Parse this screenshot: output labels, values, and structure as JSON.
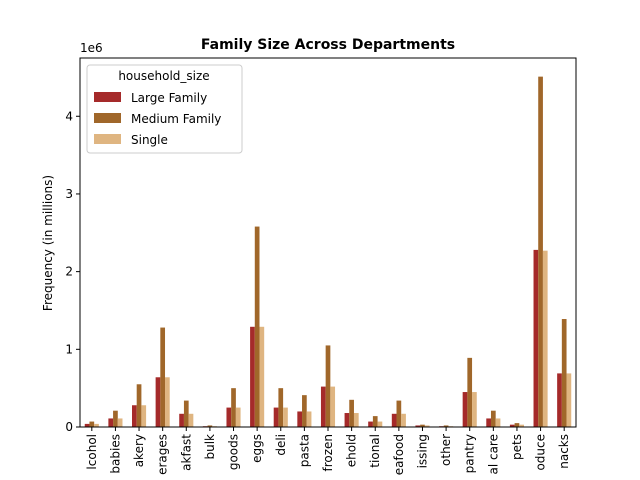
{
  "chart_data": {
    "type": "bar",
    "title": "Family Size Across Departments",
    "xlabel": "",
    "ylabel": "Frequency (in millions)",
    "y_scale_label": "1e6",
    "ylim": [
      0,
      4.75
    ],
    "yticks": [
      0,
      1,
      2,
      3,
      4
    ],
    "legend": {
      "title": "household_size",
      "placement": "top-left"
    },
    "categories": [
      "alcohol",
      "babies",
      "bakery",
      "beverages",
      "breakfast",
      "bulk",
      "canned goods",
      "dairy eggs",
      "deli",
      "dry goods pasta",
      "frozen",
      "household",
      "international",
      "meat seafood",
      "missing",
      "other",
      "pantry",
      "personal care",
      "pets",
      "produce",
      "snacks"
    ],
    "tick_labels": [
      "lcohol",
      "babies",
      "akery",
      "erages",
      "akfast",
      "bulk",
      "goods",
      "eggs",
      "deli",
      "pasta",
      "frozen",
      "ehold",
      "tional",
      "eafood",
      "issing",
      "other",
      "pantry",
      "al care",
      "pets",
      "oduce",
      "nacks"
    ],
    "series": [
      {
        "name": "Large Family",
        "color": "#a52a2a",
        "values": [
          0.04,
          0.11,
          0.28,
          0.64,
          0.17,
          0.01,
          0.25,
          1.29,
          0.25,
          0.2,
          0.52,
          0.18,
          0.07,
          0.17,
          0.02,
          0.01,
          0.45,
          0.11,
          0.03,
          2.28,
          0.69
        ]
      },
      {
        "name": "Medium Family",
        "color": "#a0672a",
        "values": [
          0.07,
          0.21,
          0.55,
          1.28,
          0.34,
          0.02,
          0.5,
          2.58,
          0.5,
          0.41,
          1.05,
          0.35,
          0.14,
          0.34,
          0.03,
          0.02,
          0.89,
          0.21,
          0.05,
          4.51,
          1.39
        ]
      },
      {
        "name": "Single",
        "color": "#dfb581",
        "values": [
          0.04,
          0.11,
          0.28,
          0.64,
          0.17,
          0.01,
          0.25,
          1.29,
          0.25,
          0.2,
          0.52,
          0.18,
          0.07,
          0.17,
          0.02,
          0.01,
          0.45,
          0.11,
          0.03,
          2.27,
          0.69
        ]
      }
    ],
    "grid": false
  }
}
